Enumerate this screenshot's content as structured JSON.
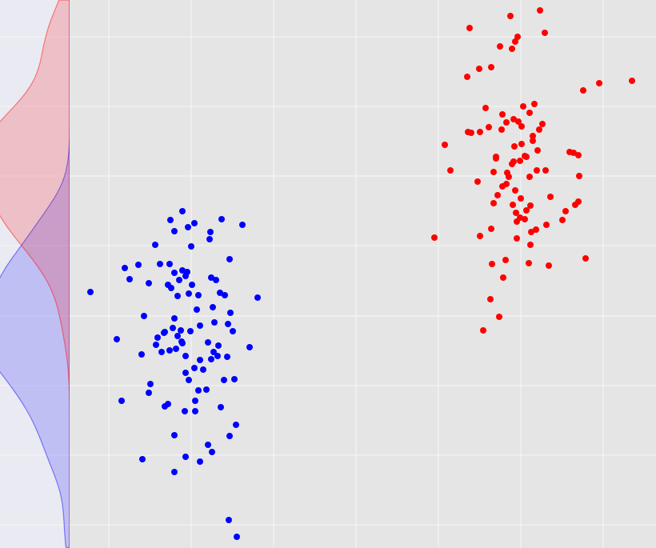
{
  "chart_data": {
    "type": "scatter",
    "xlim": [
      87,
      820
    ],
    "ylim": [
      0,
      685
    ],
    "xticks": [
      136,
      239,
      342,
      445,
      548,
      651,
      754
    ],
    "yticks": [
      29,
      116,
      203,
      290,
      378,
      465,
      552,
      639
    ],
    "grid": true,
    "marginal": "kde",
    "series": [
      {
        "color": "#0000ff",
        "x": [
          113,
          146,
          152,
          178,
          218,
          286,
          296,
          322,
          312,
          303,
          277,
          213,
          228,
          243,
          218,
          235,
          263,
          262,
          239,
          194,
          287,
          156,
          173,
          162,
          186,
          200,
          212,
          218,
          228,
          234,
          232,
          224,
          210,
          214,
          222,
          240,
          264,
          270,
          236,
          248,
          275,
          281,
          266,
          246,
          180,
          218,
          216,
          206,
          197,
          195,
          202,
          177,
          212,
          220,
          228,
          232,
          238,
          250,
          268,
          285,
          288,
          291,
          260,
          273,
          284,
          272,
          264,
          250,
          243,
          232,
          236,
          254,
          280,
          293,
          248,
          258,
          188,
          186,
          210,
          206,
          231,
          244,
          276,
          244,
          295,
          287,
          218,
          260,
          265,
          232,
          250,
          227,
          222,
          205,
          226,
          267
        ],
        "y": [
          320,
          261,
          184,
          111,
          95,
          35,
          14,
          313,
          251,
          404,
          411,
          410,
          421,
          406,
          396,
          401,
          395,
          386,
          377,
          379,
          361,
          350,
          354,
          336,
          331,
          355,
          355,
          344,
          347,
          345,
          340,
          335,
          329,
          325,
          315,
          329,
          338,
          335,
          318,
          316,
          319,
          316,
          301,
          298,
          290,
          287,
          275,
          270,
          263,
          254,
          245,
          242,
          247,
          249,
          256,
          240,
          271,
          278,
          282,
          280,
          294,
          271,
          257,
          253,
          239,
          240,
          236,
          235,
          225,
          219,
          210,
          223,
          210,
          211,
          197,
          198,
          205,
          194,
          180,
          177,
          171,
          171,
          176,
          184,
          154,
          140,
          141,
          129,
          120,
          114,
          108,
          258,
          265,
          269,
          272,
          245
        ]
      },
      {
        "color": "#ff0000",
        "x": [
          638,
          675,
          681,
          587,
          647,
          644,
          625,
          640,
          584,
          599,
          614,
          790,
          749,
          729,
          607,
          654,
          668,
          662,
          628,
          642,
          633,
          648,
          611,
          600,
          585,
          589,
          627,
          652,
          666,
          666,
          678,
          674,
          556,
          643,
          652,
          672,
          620,
          642,
          650,
          658,
          640,
          671,
          656,
          712,
          717,
          723,
          563,
          617,
          634,
          636,
          662,
          682,
          724,
          597,
          633,
          644,
          622,
          651,
          688,
          617,
          641,
          663,
          723,
          719,
          707,
          658,
          645,
          650,
          646,
          656,
          703,
          683,
          670,
          664,
          614,
          600,
          543,
          646,
          663,
          732,
          615,
          632,
          661,
          686,
          629,
          613,
          624,
          604,
          620,
          628
        ],
        "y": [
          665,
          672,
          644,
          650,
          639,
          633,
          627,
          624,
          589,
          599,
          601,
          584,
          581,
          572,
          550,
          552,
          555,
          544,
          542,
          536,
          532,
          533,
          526,
          520,
          520,
          519,
          523,
          527,
          515,
          509,
          530,
          523,
          504,
          502,
          505,
          497,
          489,
          483,
          484,
          489,
          480,
          472,
          490,
          495,
          494,
          491,
          472,
          470,
          469,
          464,
          464,
          472,
          465,
          458,
          455,
          447,
          441,
          437,
          439,
          431,
          429,
          428,
          433,
          429,
          421,
          422,
          419,
          413,
          408,
          411,
          410,
          404,
          398,
          395,
          399,
          390,
          388,
          387,
          379,
          362,
          355,
          360,
          356,
          353,
          338,
          311,
          289,
          272,
          487,
          452
        ]
      }
    ]
  }
}
